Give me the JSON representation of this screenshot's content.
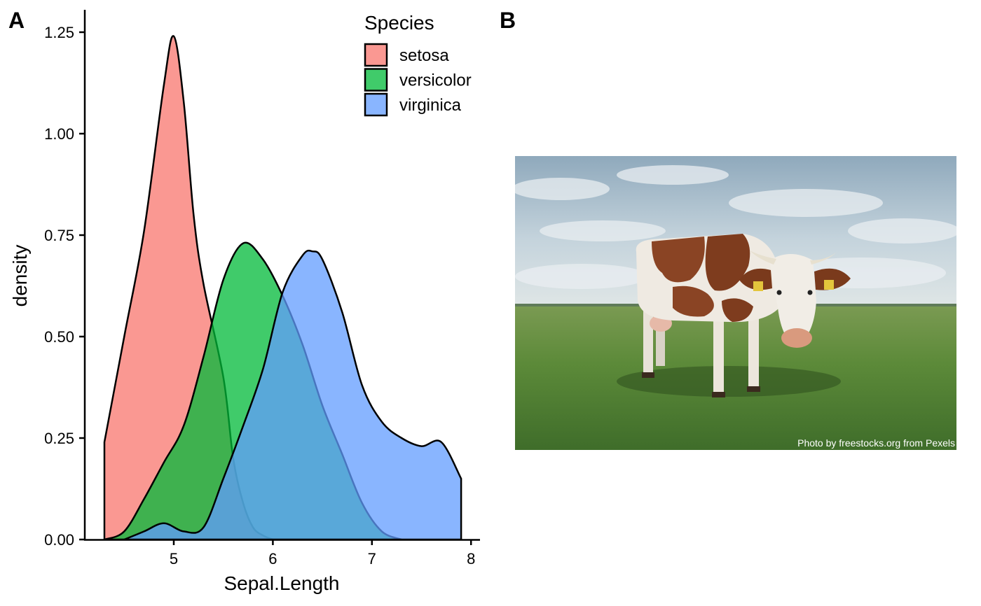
{
  "figure": {
    "panel_a_label": "A",
    "panel_b_label": "B"
  },
  "chart_data": {
    "type": "area",
    "subtype": "density",
    "title": "",
    "xlabel": "Sepal.Length",
    "ylabel": "density",
    "xlim": [
      4.3,
      7.9
    ],
    "ylim": [
      0,
      1.25
    ],
    "x_ticks": [
      5,
      6,
      7,
      8
    ],
    "x_tick_labels": [
      "5",
      "6",
      "7",
      "8"
    ],
    "y_ticks": [
      0,
      0.25,
      0.5,
      0.75,
      1.0,
      1.25
    ],
    "y_tick_labels": [
      "0.00",
      "0.25",
      "0.50",
      "0.75",
      "1.00",
      "1.25"
    ],
    "legend": {
      "title": "Species",
      "position": "top-right"
    },
    "grid": false,
    "series": [
      {
        "name": "setosa",
        "color": "#F8766D",
        "x": [
          4.3,
          4.5,
          4.7,
          4.9,
          5.0,
          5.1,
          5.2,
          5.3,
          5.5,
          5.6,
          5.7,
          5.8,
          5.9,
          6.0
        ],
        "values": [
          0.24,
          0.5,
          0.76,
          1.12,
          1.24,
          1.08,
          0.8,
          0.63,
          0.4,
          0.2,
          0.09,
          0.03,
          0.01,
          0.0
        ]
      },
      {
        "name": "versicolor",
        "color": "#00BA38",
        "x": [
          4.3,
          4.5,
          4.7,
          4.9,
          5.1,
          5.3,
          5.5,
          5.7,
          5.9,
          6.1,
          6.3,
          6.5,
          6.7,
          6.9,
          7.1,
          7.3
        ],
        "values": [
          0.0,
          0.02,
          0.1,
          0.19,
          0.28,
          0.45,
          0.64,
          0.73,
          0.69,
          0.6,
          0.48,
          0.33,
          0.21,
          0.09,
          0.02,
          0.0
        ]
      },
      {
        "name": "virginica",
        "color": "#619CFF",
        "x": [
          4.5,
          4.7,
          4.9,
          5.1,
          5.3,
          5.5,
          5.7,
          5.9,
          6.1,
          6.3,
          6.4,
          6.5,
          6.7,
          6.9,
          7.1,
          7.3,
          7.5,
          7.7,
          7.9
        ],
        "values": [
          0.0,
          0.02,
          0.04,
          0.02,
          0.03,
          0.15,
          0.28,
          0.42,
          0.61,
          0.7,
          0.71,
          0.69,
          0.56,
          0.38,
          0.29,
          0.25,
          0.23,
          0.24,
          0.15
        ]
      }
    ]
  },
  "photo": {
    "alt": "cow-photo",
    "credit": "Photo by freestocks.org from Pexels",
    "sky_color": "#a9bfce",
    "grass_color": "#5e8a3c",
    "cow_brown": "#8a4424",
    "cow_white": "#efeae2"
  }
}
